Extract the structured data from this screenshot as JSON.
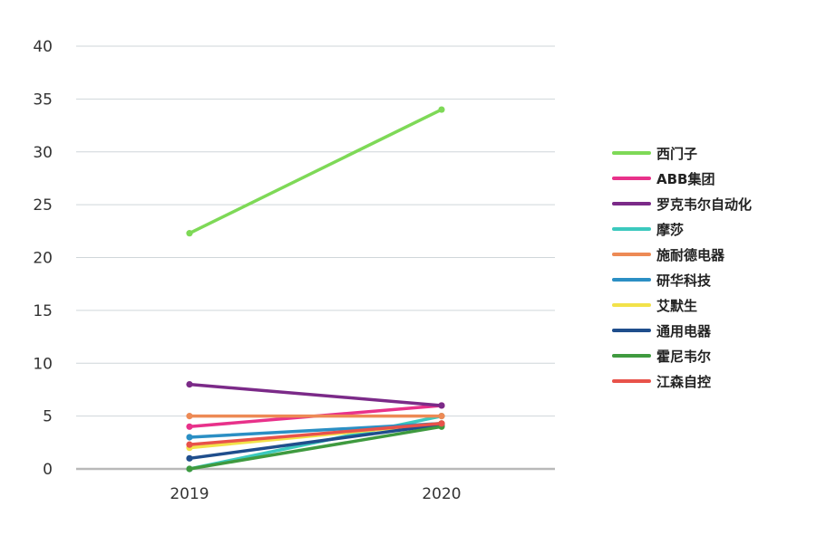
{
  "chart_data": {
    "type": "line",
    "title": "",
    "xlabel": "",
    "ylabel": "",
    "x": [
      "2019",
      "2020"
    ],
    "ylim": [
      0,
      40
    ],
    "yticks": [
      0,
      5,
      10,
      15,
      20,
      25,
      30,
      35,
      40
    ],
    "grid": true,
    "legend_position": "right",
    "series": [
      {
        "name": "西门子",
        "values": [
          22.3,
          34.0
        ],
        "color": "#7ed957"
      },
      {
        "name": "ABB集团",
        "values": [
          4.0,
          6.0
        ],
        "color": "#e8318a"
      },
      {
        "name": "罗克韦尔自动化",
        "values": [
          8.0,
          6.0
        ],
        "color": "#7b2a88"
      },
      {
        "name": "摩莎",
        "values": [
          0.0,
          5.0
        ],
        "color": "#3cc9be"
      },
      {
        "name": "施耐德电器",
        "values": [
          5.0,
          5.0
        ],
        "color": "#ed8a55"
      },
      {
        "name": "研华科技",
        "values": [
          3.0,
          4.3
        ],
        "color": "#2b8fc4"
      },
      {
        "name": "艾默生",
        "values": [
          2.0,
          4.3
        ],
        "color": "#f2e24a"
      },
      {
        "name": "通用电器",
        "values": [
          1.0,
          4.2
        ],
        "color": "#1f4e8c"
      },
      {
        "name": "霍尼韦尔",
        "values": [
          0.0,
          4.0
        ],
        "color": "#3f9a3f"
      },
      {
        "name": "江森自控",
        "values": [
          2.3,
          4.3
        ],
        "color": "#e8524a"
      }
    ]
  }
}
